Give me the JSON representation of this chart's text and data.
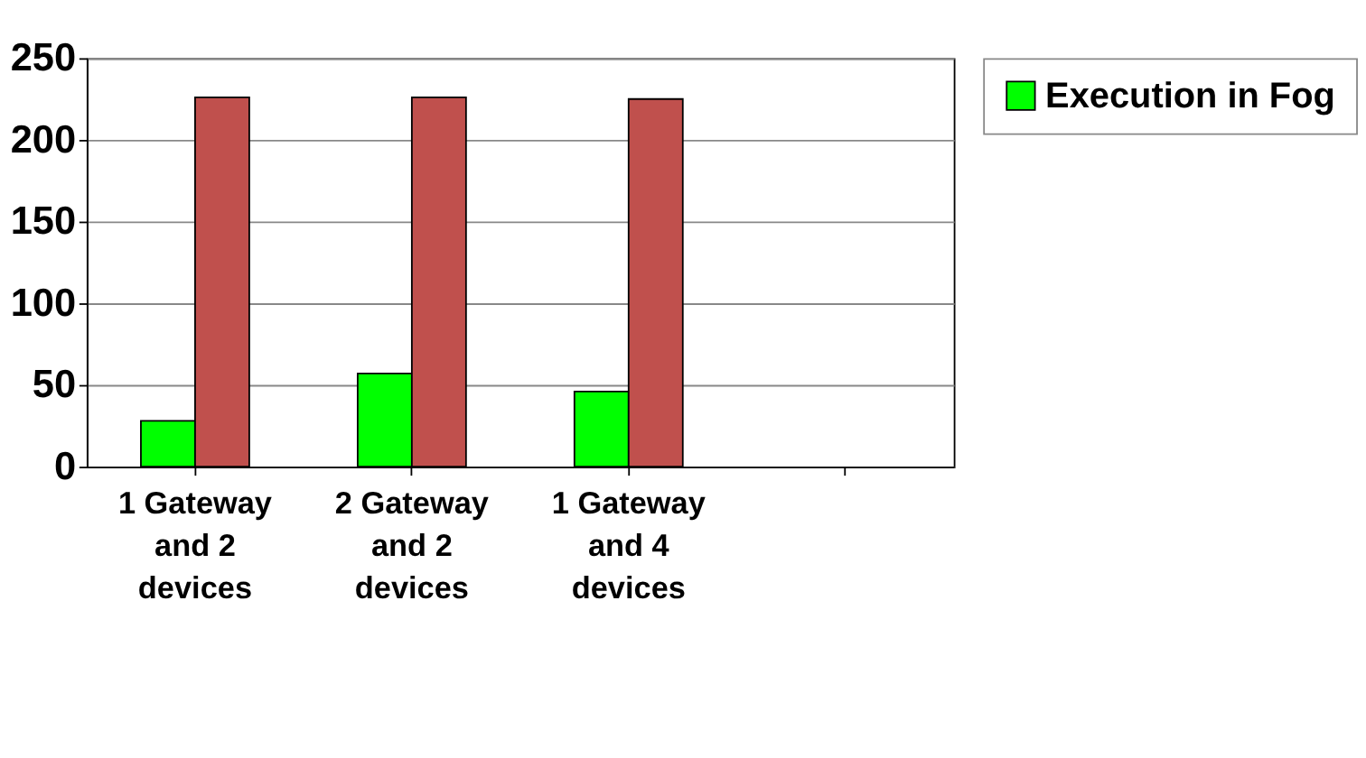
{
  "chart_data": {
    "type": "bar",
    "categories": [
      "1 Gateway and 2 devices",
      "2 Gateway and 2 devices",
      "1 Gateway and 4 devices",
      null
    ],
    "series": [
      {
        "name": "Execution in Fog",
        "color": "#00ff00",
        "values": [
          28,
          57,
          46,
          null
        ]
      },
      {
        "color": "#c0504d",
        "values": [
          226,
          226,
          225,
          null
        ]
      }
    ],
    "ylim": [
      0,
      250
    ],
    "yticks": [
      0,
      50,
      100,
      150,
      200,
      250
    ],
    "grid": "y",
    "legend": "right"
  }
}
